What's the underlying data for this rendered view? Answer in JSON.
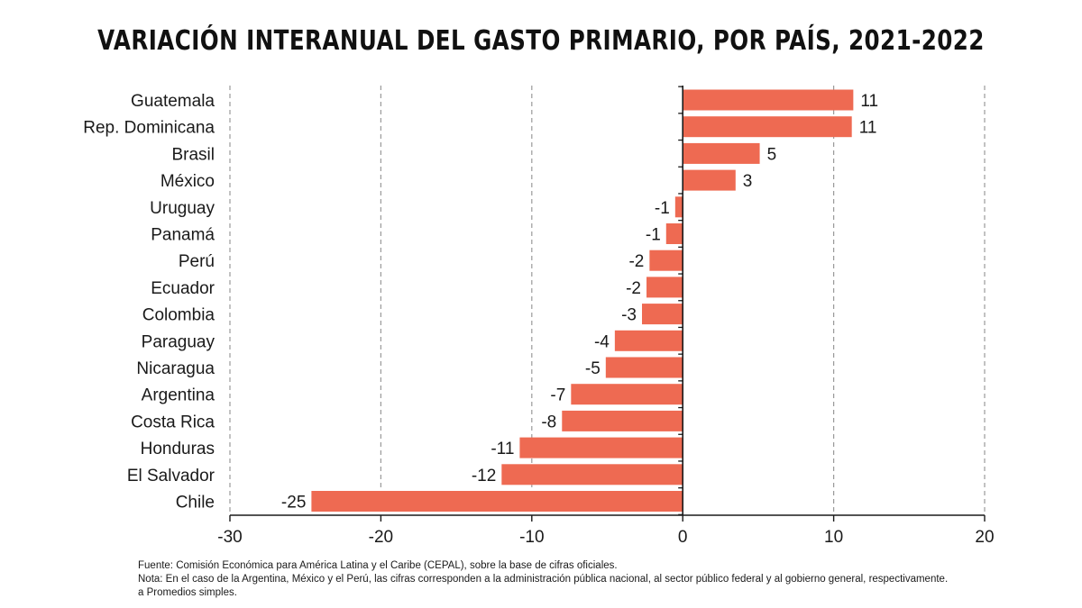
{
  "chart_data": {
    "type": "bar",
    "orientation": "horizontal",
    "title": "VARIACIÓN INTERANUAL DEL GASTO PRIMARIO, POR PAÍS, 2021-2022",
    "categories": [
      "Guatemala",
      "Rep. Dominicana",
      "Brasil",
      "México",
      "Uruguay",
      "Panamá",
      "Perú",
      "Ecuador",
      "Colombia",
      "Paraguay",
      "Nicaragua",
      "Argentina",
      "Costa Rica",
      "Honduras",
      "El Salvador",
      "Chile"
    ],
    "values": [
      11.3,
      11.2,
      5.1,
      3.5,
      -0.5,
      -1.1,
      -2.2,
      -2.4,
      -2.7,
      -4.5,
      -5.1,
      -7.4,
      -8.0,
      -10.8,
      -12.0,
      -24.6
    ],
    "value_labels": [
      "11",
      "11",
      "5",
      "3",
      "-1",
      "-1",
      "-2",
      "-2",
      "-3",
      "-4",
      "-5",
      "-7",
      "-8",
      "-11",
      "-12",
      "-25"
    ],
    "xlim": [
      -30,
      20
    ],
    "xticks": [
      -30,
      -20,
      -10,
      0,
      10,
      20
    ],
    "xtick_labels": [
      "-30",
      "-20",
      "-10",
      "0",
      "10",
      "20"
    ],
    "xlabel": "",
    "ylabel": "",
    "grid": "vertical dashed",
    "bar_color": "#ee6a52"
  },
  "notes": {
    "source": "Fuente: Comisión Económica para América Latina y el Caribe (CEPAL), sobre la base de cifras oficiales.",
    "note": "Nota: En el caso de la Argentina, México y el Perú, las cifras corresponden a la administración pública nacional, al sector público federal y al gobierno general, respectivamente.",
    "footnote": "a Promedios simples."
  }
}
